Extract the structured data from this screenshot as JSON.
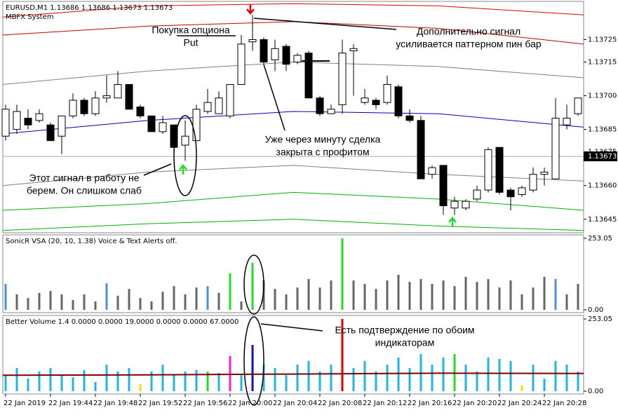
{
  "chart_data": [
    {
      "type": "candlestick",
      "title": "EURUSD,M1  1.13686 1.13686 1.13673 1.13673",
      "subtitle": "MBFX System",
      "categories": [
        "22 Jan 2019",
        null,
        null,
        null,
        "22 Jan 19:44",
        null,
        null,
        null,
        "22 Jan 19:48",
        null,
        null,
        null,
        "22 Jan 19:52",
        null,
        null,
        null,
        "22 Jan 19:56",
        null,
        null,
        null,
        "22 Jan 20:00",
        null,
        null,
        null,
        "22 Jan 20:04",
        null,
        null,
        null,
        "22 Jan 20:08",
        null,
        null,
        null,
        "22 Jan 20:12",
        null,
        null,
        null,
        "22 Jan 20:16",
        null,
        null,
        null,
        "22 Jan 20:20",
        null,
        null,
        null,
        "22 Jan 20:24",
        null,
        null,
        null,
        "22 Jan 20:28",
        null,
        null,
        null
      ],
      "open": [
        1.13682,
        1.13685,
        1.1369,
        1.13689,
        1.13687,
        1.13682,
        1.13691,
        1.13698,
        1.13692,
        1.13699,
        1.13699,
        1.13705,
        1.13695,
        1.13691,
        1.13684,
        1.13687,
        1.13678,
        1.1368,
        1.13693,
        1.13692,
        1.13691,
        1.13705,
        1.13724,
        1.13725,
        1.13716,
        1.13722,
        1.13715,
        1.13719,
        1.13699,
        1.13692,
        1.13696,
        1.1372,
        1.13697,
        1.13698,
        1.13697,
        1.13704,
        1.13691,
        1.13689,
        1.13665,
        1.13669,
        1.1365,
        1.1365,
        1.13654,
        1.13658,
        1.13677,
        1.13658,
        1.13656,
        1.13658,
        1.13665,
        1.13663,
        1.13687,
        1.13692
      ],
      "high": [
        1.13696,
        1.13696,
        1.13694,
        1.13694,
        1.13688,
        1.13691,
        1.13701,
        1.13699,
        1.13702,
        1.13709,
        1.13711,
        1.13705,
        1.13696,
        1.13691,
        1.13691,
        1.13687,
        1.13689,
        1.13696,
        1.13703,
        1.13702,
        1.13705,
        1.13727,
        1.13736,
        1.13726,
        1.13725,
        1.13723,
        1.13719,
        1.1372,
        1.137,
        1.13696,
        1.13725,
        1.13723,
        1.13703,
        1.13699,
        1.13709,
        1.13705,
        1.13694,
        1.13691,
        1.13669,
        1.13669,
        1.13655,
        1.13654,
        1.1366,
        1.13677,
        1.13677,
        1.13659,
        1.1366,
        1.13668,
        1.13668,
        1.13699,
        1.13696,
        1.13699
      ],
      "low": [
        1.1368,
        1.13683,
        1.13685,
        1.13688,
        1.1368,
        1.13674,
        1.1369,
        1.13691,
        1.13691,
        1.13697,
        1.13699,
        1.13694,
        1.1369,
        1.13684,
        1.13683,
        1.13671,
        1.13671,
        1.1368,
        1.13692,
        1.13692,
        1.1369,
        1.13705,
        1.1372,
        1.13714,
        1.13711,
        1.13711,
        1.13714,
        1.13699,
        1.13691,
        1.13692,
        1.13692,
        1.137,
        1.13696,
        1.13694,
        1.13696,
        1.1369,
        1.13688,
        1.13663,
        1.13663,
        1.13647,
        1.13647,
        1.13649,
        1.13653,
        1.13657,
        1.13656,
        1.13649,
        1.13655,
        1.13657,
        1.1366,
        1.13663,
        1.13685,
        1.13691
      ],
      "close": [
        1.13694,
        1.13693,
        1.13687,
        1.13692,
        1.1368,
        1.13691,
        1.13698,
        1.13692,
        1.13699,
        1.137,
        1.13705,
        1.13694,
        1.13691,
        1.13684,
        1.13688,
        1.13677,
        1.13682,
        1.13694,
        1.13697,
        1.13699,
        1.13705,
        1.13723,
        1.13725,
        1.13715,
        1.13721,
        1.13714,
        1.13718,
        1.13699,
        1.13692,
        1.13694,
        1.13719,
        1.13721,
        1.13699,
        1.13696,
        1.13705,
        1.13691,
        1.13689,
        1.13663,
        1.13668,
        1.13651,
        1.13653,
        1.13653,
        1.13658,
        1.13676,
        1.13657,
        1.13655,
        1.13659,
        1.13665,
        1.13666,
        1.1369,
        1.1369,
        1.13699
      ],
      "bands": [
        {
          "color": "#e00000",
          "values": [
            1.13735,
            1.1374,
            1.13741,
            1.1374,
            1.13736
          ]
        },
        {
          "color": "#c00000",
          "values": [
            1.13727,
            1.13731,
            1.13733,
            1.1373,
            1.13723
          ]
        },
        {
          "color": "#808080",
          "values": [
            1.13705,
            1.13711,
            1.13715,
            1.13713,
            1.13708
          ]
        },
        {
          "color": "#0000c0",
          "values": [
            1.13683,
            1.13689,
            1.13693,
            1.13692,
            1.13686
          ]
        },
        {
          "color": "#808080",
          "values": [
            1.1366,
            1.13666,
            1.13669,
            1.13665,
            1.13662
          ]
        },
        {
          "color": "#00b000",
          "values": [
            1.13649,
            1.13652,
            1.13657,
            1.13654,
            1.13649
          ]
        },
        {
          "color": "#00b000",
          "values": [
            1.1364,
            1.13643,
            1.13645,
            1.13642,
            1.1364
          ]
        }
      ],
      "current_price": {
        "value": 1.13673,
        "label": "1.13673"
      },
      "ylim": [
        1.13639,
        1.13742
      ],
      "yticks": [
        1.13725,
        1.13715,
        {
          "value": 1.137,
          "label": "1.13700"
        },
        1.13685,
        1.13675,
        {
          "value": 1.1366,
          "label": "1.13660"
        },
        1.13645
      ],
      "annotations": [
        [
          "Покупка опциона",
          "Put"
        ],
        [
          "Дополнительно сигнал",
          "усиливается паттерном пин бар"
        ],
        [
          "Уже через минуту сделка",
          "закрыта с профитом"
        ],
        [
          "Этот сигнал в работу не",
          "берем. Он слишком слаб"
        ]
      ]
    },
    {
      "type": "bar",
      "title": "SonicR VSA  (20, 10, 1.38)  Voice & Text Alerts off.",
      "values": [
        92,
        55,
        42,
        60,
        67,
        55,
        35,
        55,
        30,
        94,
        50,
        74,
        42,
        30,
        64,
        84,
        55,
        79,
        84,
        60,
        129,
        30,
        166,
        104,
        74,
        55,
        79,
        109,
        79,
        104,
        253,
        104,
        92,
        74,
        104,
        124,
        99,
        109,
        92,
        104,
        84,
        117,
        99,
        109,
        79,
        104,
        55,
        79,
        117,
        109,
        55,
        92
      ],
      "colors": [
        "#4a90e2",
        "#666",
        "#666",
        "#666",
        "#666",
        "#666",
        "#666",
        "#666",
        "#666",
        "#4a90e2",
        "#666",
        "#666",
        "#666",
        "#666",
        "#666",
        "#666",
        "#666",
        "#666",
        "#4a90e2",
        "#666",
        "#22dd22",
        "#666",
        "#22dd22",
        "#666",
        "#666",
        "#666",
        "#666",
        "#666",
        "#666",
        "#666",
        "#22dd22",
        "#666",
        "#666",
        "#666",
        "#666",
        "#666",
        "#666",
        "#666",
        "#666",
        "#666",
        "#666",
        "#666",
        "#666",
        "#666",
        "#666",
        "#666",
        "#666",
        "#666",
        "#666",
        "#4a90e2",
        "#666",
        "#666"
      ],
      "ylim": [
        0,
        253.05
      ],
      "yticks": [
        253.05,
        {
          "value": 0,
          "label": "0.00"
        }
      ]
    },
    {
      "type": "bar",
      "title": "Better Volume 1.4 0.0000 0.0000 19.0000 0.0000 0.0000 67.0000",
      "values": [
        56,
        81,
        44,
        69,
        81,
        56,
        49,
        74,
        32,
        93,
        69,
        81,
        25,
        69,
        93,
        56,
        69,
        74,
        69,
        64,
        123,
        56,
        162,
        93,
        81,
        56,
        93,
        106,
        69,
        93,
        253,
        81,
        106,
        69,
        93,
        118,
        81,
        130,
        93,
        118,
        130,
        93,
        69,
        118,
        113,
        106,
        20,
        93,
        44,
        106,
        93,
        69
      ],
      "colors": [
        "#1fb5e6",
        "#1fb5e6",
        "#1fb5e6",
        "#1fb5e6",
        "#1fb5e6",
        "#1fb5e6",
        "#1fb5e6",
        "#1fb5e6",
        "#1fb5e6",
        "#1fb5e6",
        "#1fb5e6",
        "#1fb5e6",
        "#f0e000",
        "#1fb5e6",
        "#1fb5e6",
        "#1fb5e6",
        "#1fb5e6",
        "#1fb5e6",
        "#22dd22",
        "#1fb5e6",
        "#ee22cc",
        "#1fb5e6",
        "#1010c0",
        "#1fb5e6",
        "#1fb5e6",
        "#1fb5e6",
        "#1fb5e6",
        "#1fb5e6",
        "#1fb5e6",
        "#1fb5e6",
        "#e00000",
        "#1fb5e6",
        "#1fb5e6",
        "#1fb5e6",
        "#1fb5e6",
        "#1fb5e6",
        "#1fb5e6",
        "#1fb5e6",
        "#1fb5e6",
        "#1fb5e6",
        "#22dd22",
        "#1fb5e6",
        "#1fb5e6",
        "#1fb5e6",
        "#1fb5e6",
        "#1fb5e6",
        "#f0e000",
        "#1fb5e6",
        "#1fb5e6",
        "#1fb5e6",
        "#1fb5e6",
        "#1fb5e6"
      ],
      "ma": {
        "color": "#800000",
        "values": [
          56,
          57,
          60,
          63,
          62
        ]
      },
      "ylim": [
        0,
        253.05
      ],
      "yticks": [
        253.05,
        {
          "value": 0,
          "label": "0.00"
        }
      ],
      "annotations": [
        [
          "Есть подтверждение по обоим",
          "индикаторам"
        ]
      ]
    }
  ]
}
